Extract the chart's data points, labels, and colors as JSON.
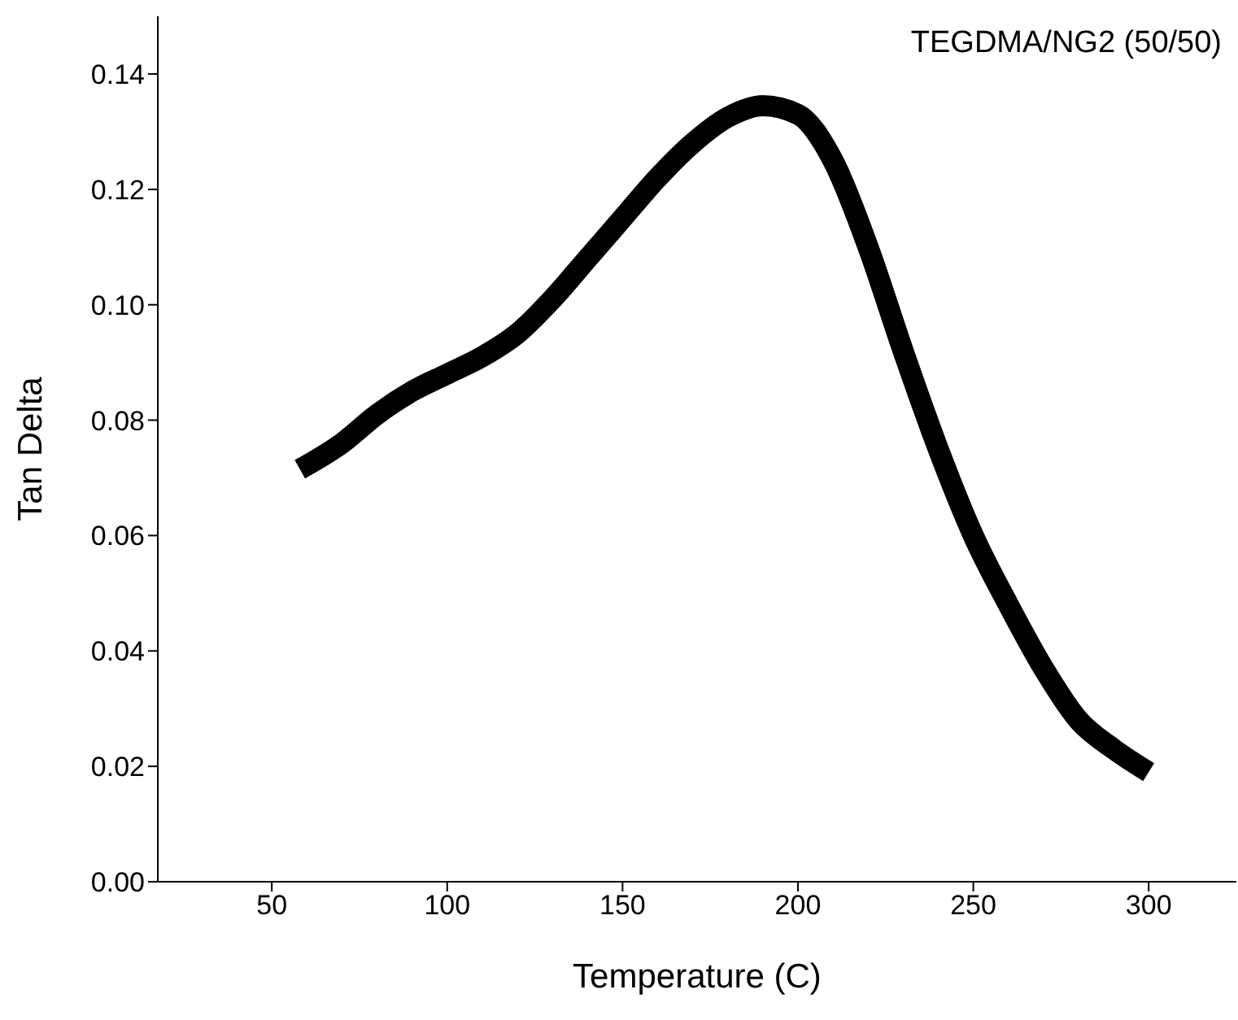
{
  "chart_data": {
    "type": "line",
    "annotations": [
      "TEGDMA/NG2 (50/50)"
    ],
    "xlabel": "Temperature (C)",
    "ylabel": "Tan Delta",
    "xlim": [
      17.5,
      325
    ],
    "xticks": [
      50,
      100,
      150,
      200,
      250,
      300
    ],
    "ylim": [
      0,
      0.15
    ],
    "yticks": [
      {
        "value": 0,
        "label": "0.00"
      },
      {
        "value": 0.02,
        "label": "0.02"
      },
      {
        "value": 0.04,
        "label": "0.04"
      },
      {
        "value": 0.06,
        "label": "0.06"
      },
      {
        "value": 0.08,
        "label": "0.08"
      },
      {
        "value": 0.1,
        "label": "0.10"
      },
      {
        "value": 0.12,
        "label": "0.12"
      },
      {
        "value": 0.14,
        "label": "0.14"
      }
    ],
    "grid": false,
    "legend": false,
    "marker": "none",
    "line_style": "solid",
    "series": [
      {
        "color": "#000000",
        "x": [
          58,
          70,
          80,
          90,
          100,
          110,
          120,
          130,
          140,
          150,
          160,
          170,
          180,
          190,
          200,
          210,
          220,
          230,
          240,
          250,
          260,
          270,
          280,
          290,
          300
        ],
        "values": [
          0.0715,
          0.076,
          0.081,
          0.085,
          0.088,
          0.091,
          0.095,
          0.101,
          0.108,
          0.115,
          0.122,
          0.128,
          0.1325,
          0.1345,
          0.133,
          0.125,
          0.11,
          0.092,
          0.075,
          0.06,
          0.048,
          0.037,
          0.028,
          0.023,
          0.019
        ]
      }
    ]
  }
}
